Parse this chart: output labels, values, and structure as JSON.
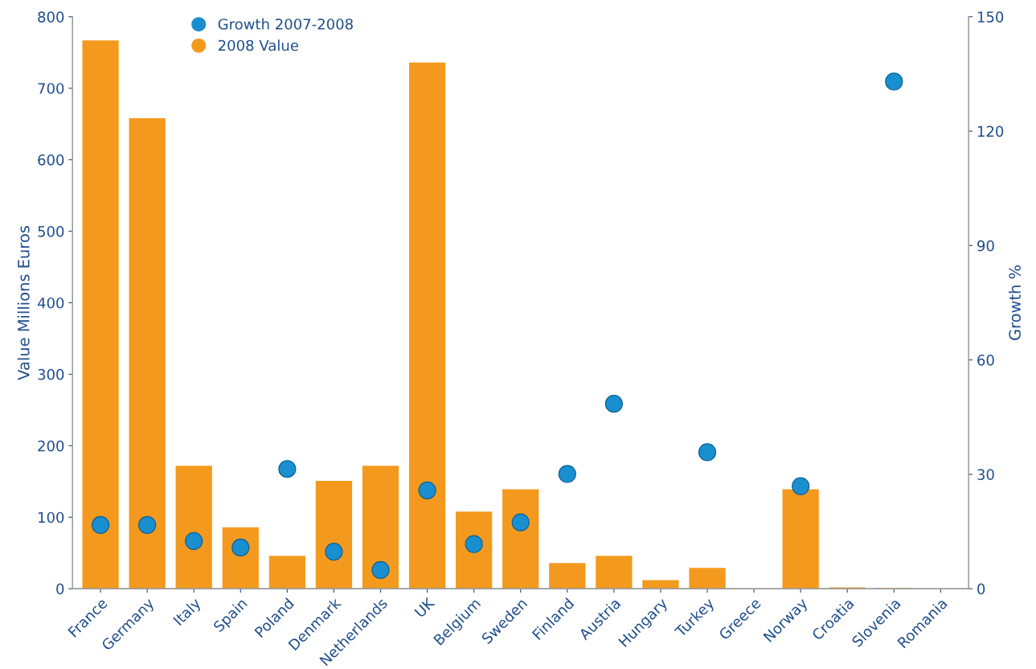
{
  "chart_data": {
    "type": "bar",
    "categories": [
      "France",
      "Germany",
      "Italy",
      "Spain",
      "Poland",
      "Denmark",
      "Netherlands",
      "UK",
      "Belgium",
      "Sweden",
      "Finland",
      "Austria",
      "Hungary",
      "Turkey",
      "Greece",
      "Norway",
      "Croatia",
      "Slovenia",
      "Romania"
    ],
    "ylabel": "Value Millions Euros",
    "y2label": "Growth %",
    "ylim": [
      0,
      800
    ],
    "yticks": [
      0,
      100,
      200,
      300,
      400,
      500,
      600,
      700,
      800
    ],
    "y2lim": [
      0,
      150
    ],
    "y2ticks": [
      0,
      30,
      60,
      90,
      120,
      150
    ],
    "series": [
      {
        "name": "Growth 2007-2008",
        "type": "scatter",
        "axis": "y2",
        "color": "#1a8fd0",
        "values": [
          16.7,
          16.7,
          12.5,
          10.8,
          31.4,
          9.7,
          4.9,
          25.8,
          11.7,
          17.4,
          30.1,
          48.5,
          null,
          35.8,
          null,
          26.9,
          null,
          133,
          null
        ]
      },
      {
        "name": "2008 Value",
        "color": "#f39a1e",
        "values": [
          767,
          658,
          172,
          86,
          46,
          151,
          172,
          736,
          108,
          139,
          36,
          46,
          12,
          29,
          null,
          139,
          2,
          1,
          null
        ]
      }
    ],
    "marker": "circle",
    "grid": false,
    "legend": "top left"
  }
}
